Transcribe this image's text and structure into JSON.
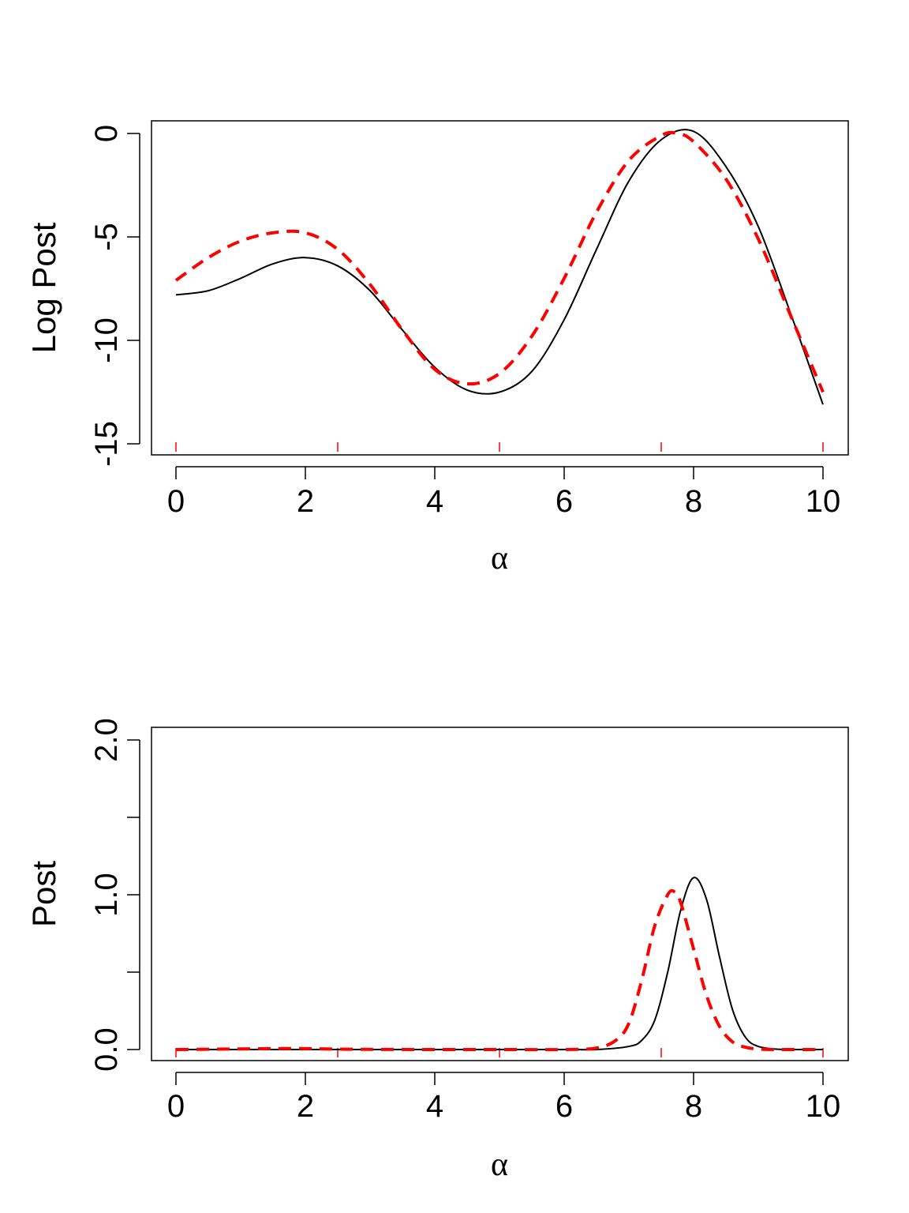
{
  "chart_data": [
    {
      "type": "line",
      "title": "",
      "xlabel": "α",
      "ylabel": "Log Post",
      "xlim": [
        0,
        10
      ],
      "ylim": [
        -15,
        0
      ],
      "xticks": [
        0,
        2,
        4,
        6,
        8,
        10
      ],
      "xtick_labels": [
        "0",
        "2",
        "4",
        "6",
        "8",
        "10"
      ],
      "yticks": [
        0,
        -5,
        -10,
        -15
      ],
      "ytick_labels": [
        "0",
        "-5",
        "-10",
        "-15"
      ],
      "rug": [
        0,
        2.5,
        5,
        7.5,
        10
      ],
      "grid": false,
      "legend": "none",
      "colors": {
        "solid": "#000000",
        "dashed": "#ff0000"
      },
      "series": [
        {
          "style": "solid",
          "x": [
            0,
            0.5,
            1,
            1.5,
            2,
            2.5,
            3,
            3.5,
            4,
            4.5,
            5,
            5.5,
            6,
            6.5,
            7,
            7.5,
            8,
            8.5,
            9,
            9.5,
            10
          ],
          "y": [
            -7.8,
            -7.6,
            -7.0,
            -6.3,
            -6.0,
            -6.4,
            -7.6,
            -9.5,
            -11.3,
            -12.4,
            -12.5,
            -11.5,
            -9.0,
            -5.6,
            -2.3,
            -0.3,
            0.1,
            -1.6,
            -4.5,
            -8.7,
            -13.1
          ]
        },
        {
          "style": "dashed",
          "x": [
            0,
            0.5,
            1,
            1.5,
            2,
            2.5,
            3,
            3.5,
            4,
            4.5,
            5,
            5.5,
            6,
            6.5,
            7,
            7.5,
            7.75,
            8,
            8.5,
            9,
            9.5,
            10
          ],
          "y": [
            -7.1,
            -6.0,
            -5.2,
            -4.8,
            -4.8,
            -5.6,
            -7.3,
            -9.5,
            -11.4,
            -12.1,
            -11.6,
            -9.8,
            -7.0,
            -3.8,
            -1.3,
            -0.1,
            0.0,
            -0.4,
            -2.2,
            -5.1,
            -8.8,
            -12.5
          ]
        }
      ]
    },
    {
      "type": "line",
      "title": "",
      "xlabel": "α",
      "ylabel": "Post",
      "xlim": [
        0,
        10
      ],
      "ylim": [
        0,
        2
      ],
      "xticks": [
        0,
        2,
        4,
        6,
        8,
        10
      ],
      "xtick_labels": [
        "0",
        "2",
        "4",
        "6",
        "8",
        "10"
      ],
      "yticks": [
        0,
        0.5,
        1,
        1.5,
        2
      ],
      "ytick_labels": [
        "0.0",
        "",
        "1.0",
        "",
        "2.0"
      ],
      "rug": [
        0,
        2.5,
        5,
        7.5,
        10
      ],
      "grid": false,
      "legend": "none",
      "colors": {
        "solid": "#000000",
        "dashed": "#ff0000"
      },
      "series": [
        {
          "style": "solid",
          "x": [
            0,
            1,
            2,
            3,
            4,
            5,
            6,
            6.5,
            7,
            7.2,
            7.4,
            7.6,
            7.8,
            8.0,
            8.2,
            8.4,
            8.6,
            8.8,
            9.0,
            9.3,
            9.6,
            10
          ],
          "y": [
            0,
            0,
            0,
            0,
            0,
            0,
            0,
            0,
            0.02,
            0.06,
            0.19,
            0.5,
            0.9,
            1.11,
            0.97,
            0.6,
            0.26,
            0.08,
            0.02,
            0.002,
            0,
            0
          ]
        },
        {
          "style": "dashed",
          "x": [
            0,
            0.5,
            1,
            1.5,
            2,
            2.5,
            3,
            4,
            5,
            6,
            6.5,
            6.8,
            7.0,
            7.2,
            7.4,
            7.6,
            7.7,
            7.8,
            8.0,
            8.2,
            8.4,
            8.6,
            8.8,
            9.0,
            9.3,
            10
          ],
          "y": [
            0,
            0.002,
            0.004,
            0.006,
            0.006,
            0.003,
            0.001,
            0,
            0,
            0,
            0.01,
            0.06,
            0.17,
            0.45,
            0.8,
            1.0,
            1.02,
            0.95,
            0.65,
            0.35,
            0.15,
            0.05,
            0.015,
            0.003,
            0,
            0
          ]
        }
      ]
    }
  ]
}
